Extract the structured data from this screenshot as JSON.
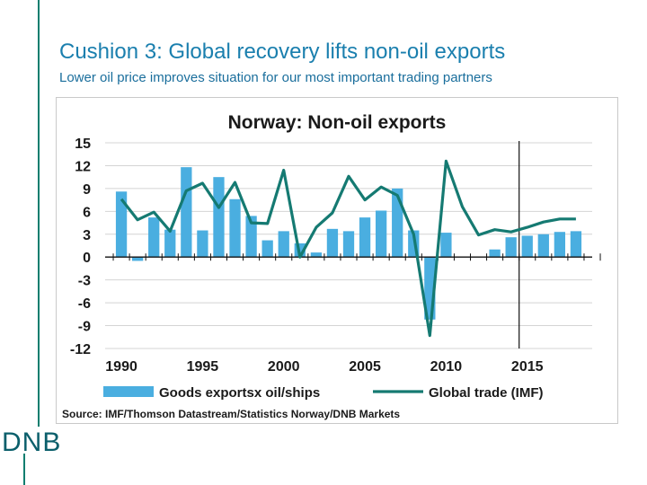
{
  "slide": {
    "title": "Cushion 3: Global recovery lifts non-oil exports",
    "subtitle": "Lower oil price improves situation for our most important trading partners",
    "logo": "DNB"
  },
  "colors": {
    "bar": "#4aaee0",
    "line": "#157a72",
    "accent": "#0b7e6f",
    "title": "#1a7fae"
  },
  "chart_data": {
    "type": "bar",
    "title": "Norway: Non-oil exports",
    "xlabel": "",
    "ylabel": "",
    "ylim": [
      -12,
      15
    ],
    "yticks": [
      15,
      12,
      9,
      6,
      3,
      0,
      -3,
      -6,
      -9,
      -12
    ],
    "xlim": [
      1989,
      2019
    ],
    "xticks": [
      1990,
      1995,
      2000,
      2005,
      2010,
      2015
    ],
    "forecast_marker_x": 2014.5,
    "grid": true,
    "legend_position": "bottom",
    "source": "Source: IMF/Thomson Datastream/Statistics Norway/DNB Markets",
    "series": [
      {
        "name": "Goods exportsx oil/ships",
        "kind": "bar",
        "x": [
          1990,
          1991,
          1992,
          1993,
          1994,
          1995,
          1996,
          1997,
          1998,
          1999,
          2000,
          2001,
          2002,
          2003,
          2004,
          2005,
          2006,
          2007,
          2008,
          2009,
          2010,
          2011,
          2012,
          2013,
          2014,
          2015,
          2016,
          2017,
          2018
        ],
        "values": [
          8.6,
          -0.5,
          5.2,
          3.6,
          11.8,
          3.5,
          10.5,
          7.6,
          5.4,
          2.2,
          3.4,
          1.8,
          0.6,
          3.7,
          3.4,
          5.2,
          6.1,
          9.0,
          3.5,
          -8.2,
          3.2,
          0,
          0,
          1.0,
          2.6,
          2.8,
          3.0,
          3.3,
          3.4
        ]
      },
      {
        "name": "Global trade (IMF)",
        "kind": "line",
        "x": [
          1990,
          1991,
          1992,
          1993,
          1994,
          1995,
          1996,
          1997,
          1998,
          1999,
          2000,
          2001,
          2002,
          2003,
          2004,
          2005,
          2006,
          2007,
          2008,
          2009,
          2010,
          2011,
          2012,
          2013,
          2014,
          2015,
          2016,
          2017,
          2018
        ],
        "values": [
          7.6,
          4.9,
          5.9,
          3.4,
          8.7,
          9.7,
          6.5,
          9.8,
          4.5,
          4.4,
          11.4,
          0.0,
          3.9,
          5.8,
          10.6,
          7.5,
          9.2,
          8.1,
          3.0,
          -10.3,
          12.6,
          6.6,
          2.9,
          3.6,
          3.3,
          3.9,
          4.6,
          5.0,
          5.0
        ]
      }
    ]
  }
}
